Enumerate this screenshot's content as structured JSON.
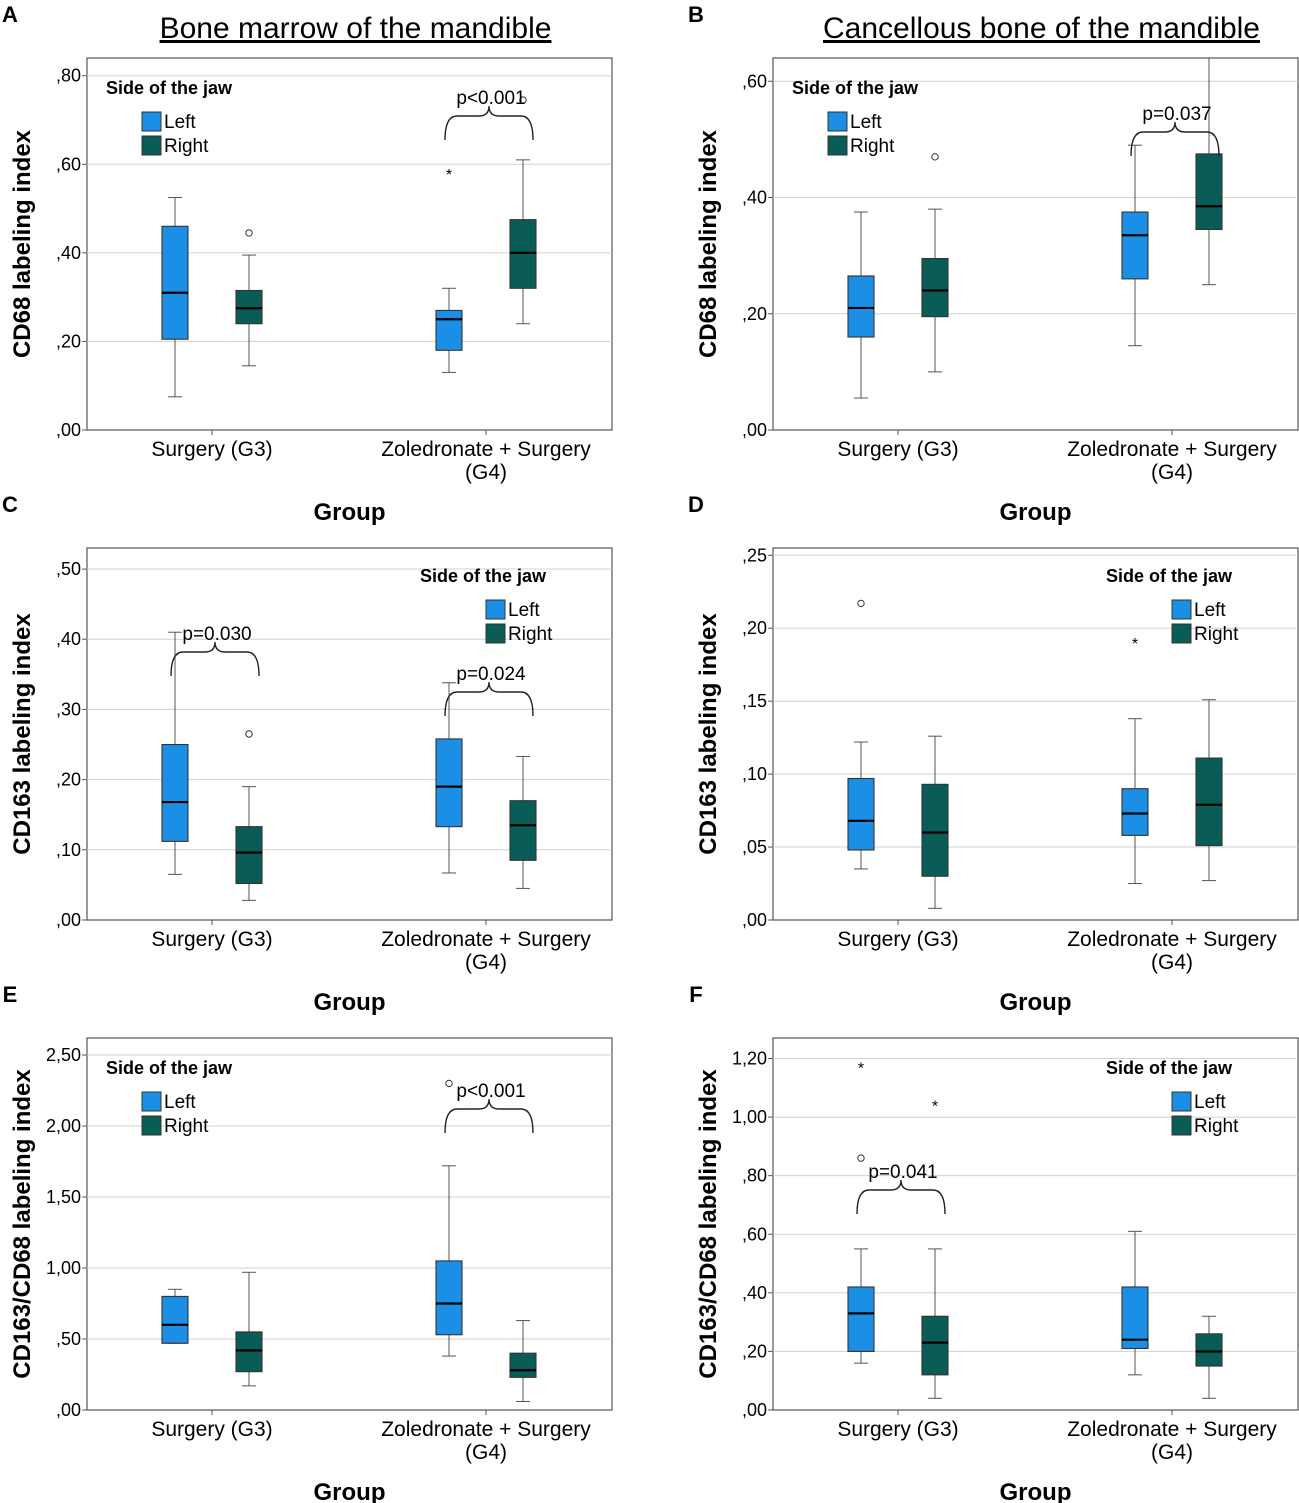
{
  "chart_data": [
    {
      "panel": "A",
      "type": "box",
      "title": "Bone marrow of the mandible",
      "ylabel": "CD68 labeling index",
      "xlabel": "Group",
      "ylim": [
        0,
        0.84
      ],
      "yticks": [
        0,
        0.2,
        0.4,
        0.6,
        0.8
      ],
      "tick_labels": [
        ",00",
        ",20",
        ",40",
        ",60",
        ",80"
      ],
      "categories": [
        "Surgery (G3)",
        "Zoledronate + Surgery (G4)"
      ],
      "legend": {
        "title": "Side of the jaw",
        "position": "top-left",
        "entries": [
          "Left",
          "Right"
        ]
      },
      "series": [
        {
          "name": "Left",
          "color": "#1b8fe6",
          "boxes": [
            {
              "min": 0.075,
              "q1": 0.205,
              "median": 0.31,
              "q3": 0.46,
              "max": 0.525,
              "outliers": [],
              "extremes": []
            },
            {
              "min": 0.13,
              "q1": 0.18,
              "median": 0.25,
              "q3": 0.27,
              "max": 0.32,
              "outliers": [],
              "extremes": [
                0.585
              ]
            }
          ]
        },
        {
          "name": "Right",
          "color": "#0a5d56",
          "boxes": [
            {
              "min": 0.145,
              "q1": 0.24,
              "median": 0.275,
              "q3": 0.315,
              "max": 0.395,
              "outliers": [
                0.445
              ],
              "extremes": []
            },
            {
              "min": 0.24,
              "q1": 0.32,
              "median": 0.4,
              "q3": 0.475,
              "max": 0.61,
              "outliers": [
                0.745
              ],
              "extremes": []
            }
          ]
        }
      ],
      "annotations": [
        {
          "text": "p<0.001",
          "category": 1
        }
      ]
    },
    {
      "panel": "B",
      "type": "box",
      "title": "Cancellous bone of the mandible",
      "ylabel": "CD68 labeling index",
      "xlabel": "Group",
      "ylim": [
        0,
        0.64
      ],
      "yticks": [
        0,
        0.2,
        0.4,
        0.6
      ],
      "tick_labels": [
        ",00",
        ",20",
        ",40",
        ",60"
      ],
      "categories": [
        "Surgery (G3)",
        "Zoledronate + Surgery (G4)"
      ],
      "legend": {
        "title": "Side of the jaw",
        "position": "top-left",
        "entries": [
          "Left",
          "Right"
        ]
      },
      "series": [
        {
          "name": "Left",
          "color": "#1b8fe6",
          "boxes": [
            {
              "min": 0.055,
              "q1": 0.16,
              "median": 0.21,
              "q3": 0.265,
              "max": 0.375,
              "outliers": [],
              "extremes": []
            },
            {
              "min": 0.145,
              "q1": 0.26,
              "median": 0.335,
              "q3": 0.375,
              "max": 0.49,
              "outliers": [],
              "extremes": []
            }
          ]
        },
        {
          "name": "Right",
          "color": "#0a5d56",
          "boxes": [
            {
              "min": 0.1,
              "q1": 0.195,
              "median": 0.24,
              "q3": 0.295,
              "max": 0.38,
              "outliers": [
                0.47
              ],
              "extremes": []
            },
            {
              "min": 0.25,
              "q1": 0.345,
              "median": 0.385,
              "q3": 0.475,
              "max": 0.64,
              "outliers": [],
              "extremes": []
            }
          ]
        }
      ],
      "annotations": [
        {
          "text": "p=0.037",
          "category": 1
        }
      ]
    },
    {
      "panel": "C",
      "type": "box",
      "title": "",
      "ylabel": "CD163 labeling index",
      "xlabel": "Group",
      "ylim": [
        0,
        0.53
      ],
      "yticks": [
        0,
        0.1,
        0.2,
        0.3,
        0.4,
        0.5
      ],
      "tick_labels": [
        ",00",
        ",10",
        ",20",
        ",30",
        ",40",
        ",50"
      ],
      "categories": [
        "Surgery (G3)",
        "Zoledronate + Surgery (G4)"
      ],
      "legend": {
        "title": "Side of the jaw",
        "position": "top-right",
        "entries": [
          "Left",
          "Right"
        ]
      },
      "series": [
        {
          "name": "Left",
          "color": "#1b8fe6",
          "boxes": [
            {
              "min": 0.065,
              "q1": 0.112,
              "median": 0.168,
              "q3": 0.25,
              "max": 0.41,
              "outliers": [],
              "extremes": []
            },
            {
              "min": 0.067,
              "q1": 0.133,
              "median": 0.19,
              "q3": 0.258,
              "max": 0.338,
              "outliers": [],
              "extremes": []
            }
          ]
        },
        {
          "name": "Right",
          "color": "#0a5d56",
          "boxes": [
            {
              "min": 0.028,
              "q1": 0.052,
              "median": 0.096,
              "q3": 0.133,
              "max": 0.19,
              "outliers": [
                0.265
              ],
              "extremes": []
            },
            {
              "min": 0.045,
              "q1": 0.085,
              "median": 0.135,
              "q3": 0.17,
              "max": 0.233,
              "outliers": [],
              "extremes": []
            }
          ]
        }
      ],
      "annotations": [
        {
          "text": "p=0.030",
          "category": 0
        },
        {
          "text": "p=0.024",
          "category": 1
        }
      ]
    },
    {
      "panel": "D",
      "type": "box",
      "title": "",
      "ylabel": "CD163 labeling index",
      "xlabel": "Group",
      "ylim": [
        0,
        0.255
      ],
      "yticks": [
        0,
        0.05,
        0.1,
        0.15,
        0.2,
        0.25
      ],
      "tick_labels": [
        ",00",
        ",05",
        ",10",
        ",15",
        ",20",
        ",25"
      ],
      "categories": [
        "Surgery (G3)",
        "Zoledronate + Surgery (G4)"
      ],
      "legend": {
        "title": "Side of the jaw",
        "position": "top-right",
        "entries": [
          "Left",
          "Right"
        ]
      },
      "series": [
        {
          "name": "Left",
          "color": "#1b8fe6",
          "boxes": [
            {
              "min": 0.035,
              "q1": 0.048,
              "median": 0.068,
              "q3": 0.097,
              "max": 0.122,
              "outliers": [
                0.217
              ],
              "extremes": []
            },
            {
              "min": 0.025,
              "q1": 0.058,
              "median": 0.073,
              "q3": 0.09,
              "max": 0.138,
              "outliers": [],
              "extremes": [
                0.192
              ]
            }
          ]
        },
        {
          "name": "Right",
          "color": "#0a5d56",
          "boxes": [
            {
              "min": 0.008,
              "q1": 0.03,
              "median": 0.06,
              "q3": 0.093,
              "max": 0.126,
              "outliers": [],
              "extremes": []
            },
            {
              "min": 0.027,
              "q1": 0.051,
              "median": 0.079,
              "q3": 0.111,
              "max": 0.151,
              "outliers": [],
              "extremes": []
            }
          ]
        }
      ],
      "annotations": []
    },
    {
      "panel": "E",
      "type": "box",
      "title": "",
      "ylabel": "CD163/CD68 labeling index",
      "xlabel": "Group",
      "ylim": [
        0,
        2.62
      ],
      "yticks": [
        0,
        0.5,
        1.0,
        1.5,
        2.0,
        2.5
      ],
      "tick_labels": [
        ",00",
        ",50",
        "1,00",
        "1,50",
        "2,00",
        "2,50"
      ],
      "categories": [
        "Surgery (G3)",
        "Zoledronate + Surgery (G4)"
      ],
      "legend": {
        "title": "Side of the jaw",
        "position": "top-left",
        "entries": [
          "Left",
          "Right"
        ]
      },
      "series": [
        {
          "name": "Left",
          "color": "#1b8fe6",
          "boxes": [
            {
              "min": 0.47,
              "q1": 0.47,
              "median": 0.6,
              "q3": 0.8,
              "max": 0.85,
              "outliers": [],
              "extremes": []
            },
            {
              "min": 0.38,
              "q1": 0.53,
              "median": 0.75,
              "q3": 1.05,
              "max": 1.72,
              "outliers": [
                2.3
              ],
              "extremes": []
            }
          ]
        },
        {
          "name": "Right",
          "color": "#0a5d56",
          "boxes": [
            {
              "min": 0.17,
              "q1": 0.27,
              "median": 0.42,
              "q3": 0.55,
              "max": 0.97,
              "outliers": [],
              "extremes": []
            },
            {
              "min": 0.06,
              "q1": 0.23,
              "median": 0.28,
              "q3": 0.4,
              "max": 0.63,
              "outliers": [],
              "extremes": []
            }
          ]
        }
      ],
      "annotations": [
        {
          "text": "p<0.001",
          "category": 1
        }
      ]
    },
    {
      "panel": "F",
      "type": "box",
      "title": "",
      "ylabel": "CD163/CD68 labeling index",
      "xlabel": "Group",
      "ylim": [
        0,
        1.27
      ],
      "yticks": [
        0,
        0.2,
        0.4,
        0.6,
        0.8,
        1.0,
        1.2
      ],
      "tick_labels": [
        ",00",
        ",20",
        ",40",
        ",60",
        ",80",
        "1,00",
        "1,20"
      ],
      "categories": [
        "Surgery (G3)",
        "Zoledronate + Surgery (G4)"
      ],
      "legend": {
        "title": "Side of the jaw",
        "position": "top-right",
        "entries": [
          "Left",
          "Right"
        ]
      },
      "series": [
        {
          "name": "Left",
          "color": "#1b8fe6",
          "boxes": [
            {
              "min": 0.16,
              "q1": 0.2,
              "median": 0.33,
              "q3": 0.42,
              "max": 0.55,
              "outliers": [
                0.86
              ],
              "extremes": [
                1.18
              ]
            },
            {
              "min": 0.12,
              "q1": 0.21,
              "median": 0.24,
              "q3": 0.42,
              "max": 0.61,
              "outliers": [],
              "extremes": []
            }
          ]
        },
        {
          "name": "Right",
          "color": "#0a5d56",
          "boxes": [
            {
              "min": 0.04,
              "q1": 0.12,
              "median": 0.23,
              "q3": 0.32,
              "max": 0.55,
              "outliers": [],
              "extremes": [
                1.05
              ]
            },
            {
              "min": 0.04,
              "q1": 0.15,
              "median": 0.2,
              "q3": 0.26,
              "max": 0.32,
              "outliers": [],
              "extremes": []
            }
          ]
        }
      ],
      "annotations": [
        {
          "text": "p=0.041",
          "category": 0
        }
      ]
    }
  ]
}
